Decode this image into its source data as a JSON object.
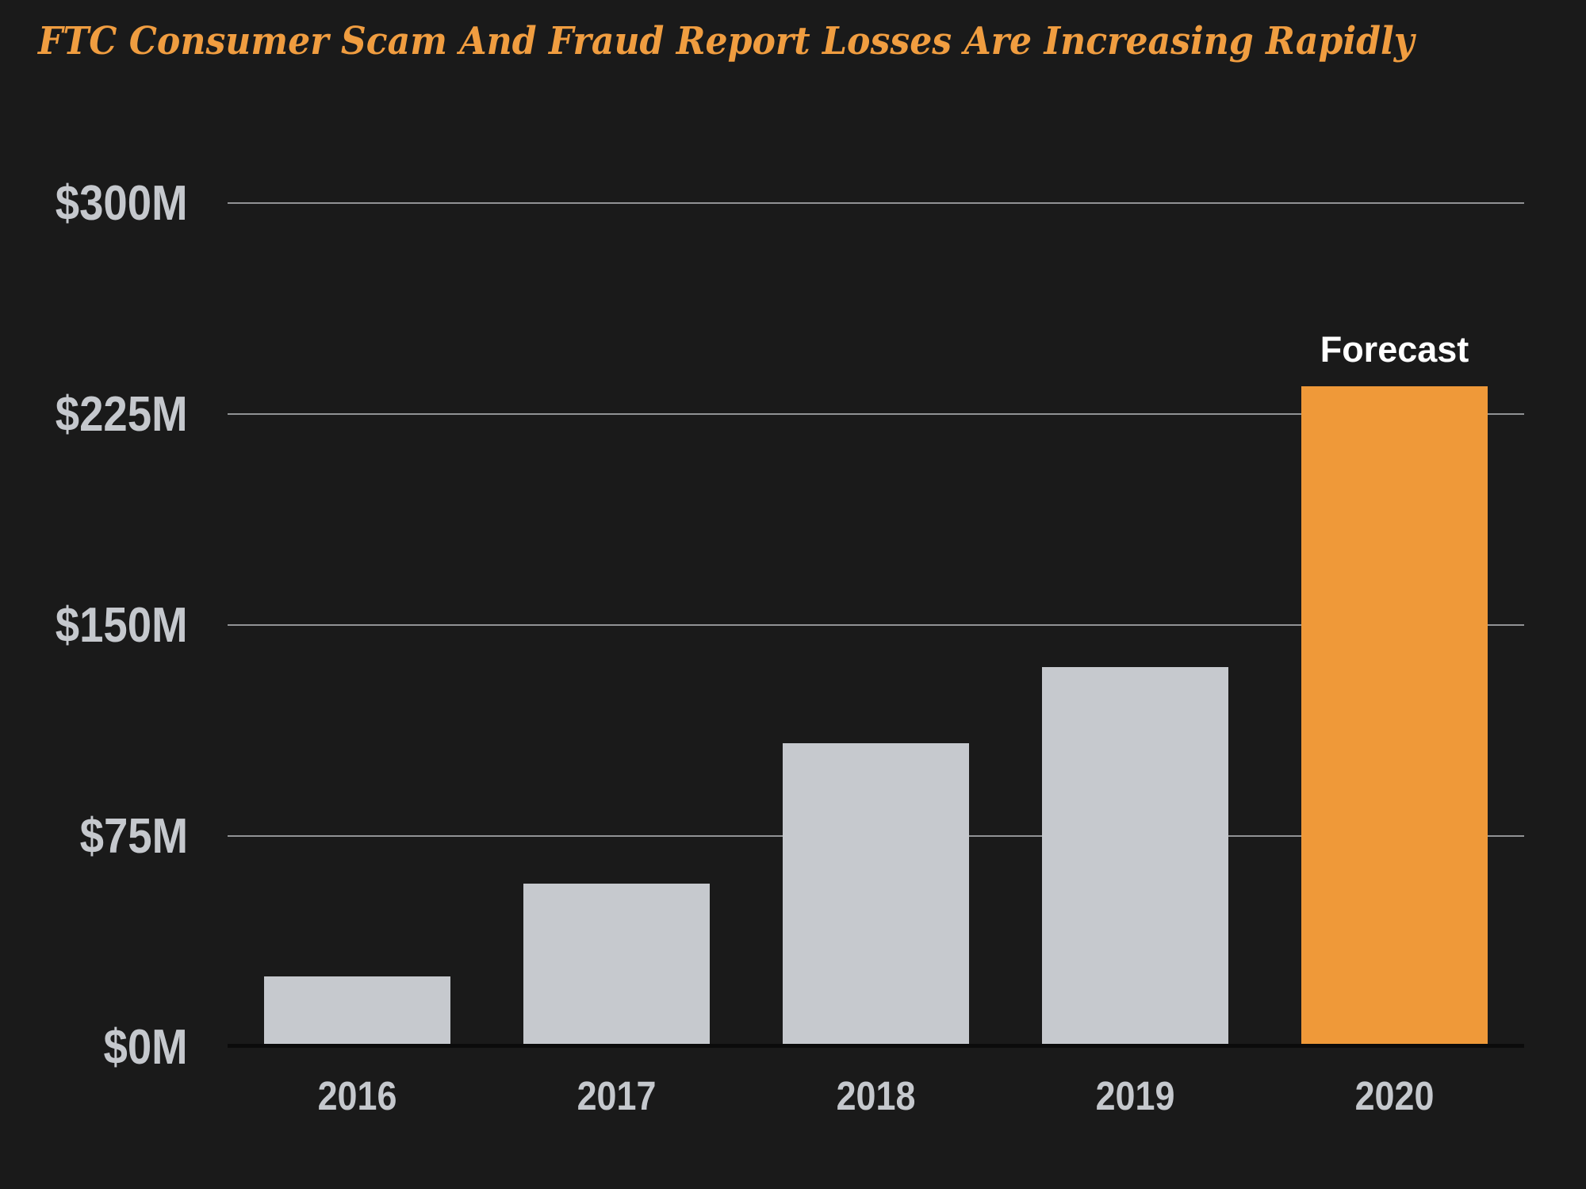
{
  "colors": {
    "background": "#1A1A1A",
    "title": "#F09D40",
    "bar": "#C6C9CE",
    "forecast_bar": "#EF9939",
    "gridline": "#919395",
    "axis_line": "#0B0B0B",
    "tick_label": "#C5C8CD",
    "annotation_label": "#FFFFFF"
  },
  "chart_data": {
    "type": "bar",
    "title": "FTC Consumer Scam And Fraud Report Losses Are Increasing Rapidly",
    "categories": [
      "2016",
      "2017",
      "2018",
      "2019",
      "2020"
    ],
    "values": [
      25,
      58,
      108,
      135,
      235
    ],
    "value_unit": "USD millions",
    "xlabel": "",
    "ylabel": "",
    "ylim": [
      0,
      300
    ],
    "yticks": [
      300,
      225,
      150,
      75,
      0
    ],
    "ytick_labels": [
      "$300M",
      "$225M",
      "$150M",
      "$75M",
      "$0M"
    ],
    "grid": true,
    "legend_position": "none",
    "annotations": [
      {
        "text": "Forecast",
        "category": "2020"
      }
    ],
    "highlight": {
      "category": "2020"
    }
  }
}
